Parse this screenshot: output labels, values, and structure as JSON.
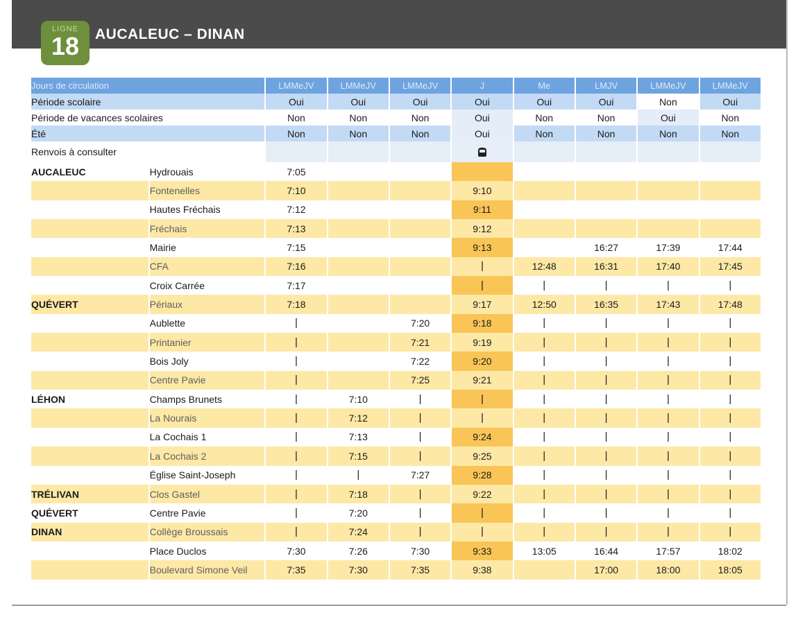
{
  "header": {
    "badge_label": "LIGNE",
    "badge_number": "18",
    "title": "AUCALEUC – DINAN"
  },
  "table": {
    "head_label": "Jours de circulation",
    "columns": [
      "LMMeJV",
      "LMMeJV",
      "LMMeJV",
      "J",
      "Me",
      "LMJV",
      "LMMeJV",
      "LMMeJV"
    ],
    "period_label": "Période scolaire",
    "period": [
      "Oui",
      "Oui",
      "Oui",
      "Oui",
      "Oui",
      "Oui",
      "Non",
      "Oui"
    ],
    "vacances_label": "Période de vacances scolaires",
    "vacances": [
      "Non",
      "Non",
      "Non",
      "Oui",
      "Non",
      "Non",
      "Oui",
      "Non"
    ],
    "ete_label": "Été",
    "ete": [
      "Non",
      "Non",
      "Non",
      "Oui",
      "Non",
      "Non",
      "Non",
      "Non"
    ],
    "renvois_label": "Renvois à consulter",
    "renvois_icon": "bus-icon",
    "stops": [
      {
        "city": "AUCALEUC",
        "stop": "Hydrouais",
        "times": [
          "7:05",
          "",
          "",
          "",
          "",
          "",
          "",
          ""
        ]
      },
      {
        "city": "",
        "stop": "Fontenelles",
        "times": [
          "7:10",
          "",
          "",
          "9:10",
          "",
          "",
          "",
          ""
        ]
      },
      {
        "city": "",
        "stop": "Hautes Fréchais",
        "times": [
          "7:12",
          "",
          "",
          "9:11",
          "",
          "",
          "",
          ""
        ]
      },
      {
        "city": "",
        "stop": "Fréchais",
        "times": [
          "7:13",
          "",
          "",
          "9:12",
          "",
          "",
          "",
          ""
        ]
      },
      {
        "city": "",
        "stop": "Mairie",
        "times": [
          "7:15",
          "",
          "",
          "9:13",
          "",
          "16:27",
          "17:39",
          "17:44"
        ]
      },
      {
        "city": "",
        "stop": "CFA",
        "times": [
          "7:16",
          "",
          "",
          "|",
          "12:48",
          "16:31",
          "17:40",
          "17:45"
        ]
      },
      {
        "city": "",
        "stop": "Croix Carrée",
        "times": [
          "7:17",
          "",
          "",
          "|",
          "|",
          "|",
          "|",
          "|"
        ]
      },
      {
        "city": "QUÉVERT",
        "stop": "Périaux",
        "times": [
          "7:18",
          "",
          "",
          "9:17",
          "12:50",
          "16:35",
          "17:43",
          "17:48"
        ]
      },
      {
        "city": "",
        "stop": "Aublette",
        "times": [
          "|",
          "",
          "7:20",
          "9:18",
          "|",
          "|",
          "|",
          "|"
        ]
      },
      {
        "city": "",
        "stop": "Printanier",
        "times": [
          "|",
          "",
          "7:21",
          "9:19",
          "|",
          "|",
          "|",
          "|"
        ]
      },
      {
        "city": "",
        "stop": "Bois Joly",
        "times": [
          "|",
          "",
          "7:22",
          "9:20",
          "|",
          "|",
          "|",
          "|"
        ]
      },
      {
        "city": "",
        "stop": "Centre Pavie",
        "times": [
          "|",
          "",
          "7:25",
          "9:21",
          "|",
          "|",
          "|",
          "|"
        ]
      },
      {
        "city": "LÉHON",
        "stop": "Champs Brunets",
        "times": [
          "|",
          "7:10",
          "|",
          "|",
          "|",
          "|",
          "|",
          "|"
        ]
      },
      {
        "city": "",
        "stop": "La Nourais",
        "times": [
          "|",
          "7:12",
          "|",
          "|",
          "|",
          "|",
          "|",
          "|"
        ]
      },
      {
        "city": "",
        "stop": "La Cochais 1",
        "times": [
          "|",
          "7:13",
          "|",
          "9:24",
          "|",
          "|",
          "|",
          "|"
        ]
      },
      {
        "city": "",
        "stop": "La Cochais 2",
        "times": [
          "|",
          "7:15",
          "|",
          "9:25",
          "|",
          "|",
          "|",
          "|"
        ]
      },
      {
        "city": "",
        "stop": "Église Saint-Joseph",
        "times": [
          "|",
          "|",
          "7:27",
          "9:28",
          "|",
          "|",
          "|",
          "|"
        ]
      },
      {
        "city": "TRÉLIVAN",
        "stop": "Clos Gastel",
        "times": [
          "|",
          "7:18",
          "|",
          "9:22",
          "|",
          "|",
          "|",
          "|"
        ]
      },
      {
        "city": "QUÉVERT",
        "stop": "Centre Pavie",
        "times": [
          "|",
          "7:20",
          "|",
          "|",
          "|",
          "|",
          "|",
          "|"
        ]
      },
      {
        "city": "DINAN",
        "stop": "Collège Broussais",
        "times": [
          "|",
          "7:24",
          "|",
          "|",
          "|",
          "|",
          "|",
          "|"
        ]
      },
      {
        "city": "",
        "stop": "Place Duclos",
        "times": [
          "7:30",
          "7:26",
          "7:30",
          "9:33",
          "13:05",
          "16:44",
          "17:57",
          "18:02"
        ]
      },
      {
        "city": "",
        "stop": "Boulevard Simone Veil",
        "times": [
          "7:35",
          "7:30",
          "7:35",
          "9:38",
          "",
          "17:00",
          "18:00",
          "18:05"
        ]
      }
    ]
  }
}
